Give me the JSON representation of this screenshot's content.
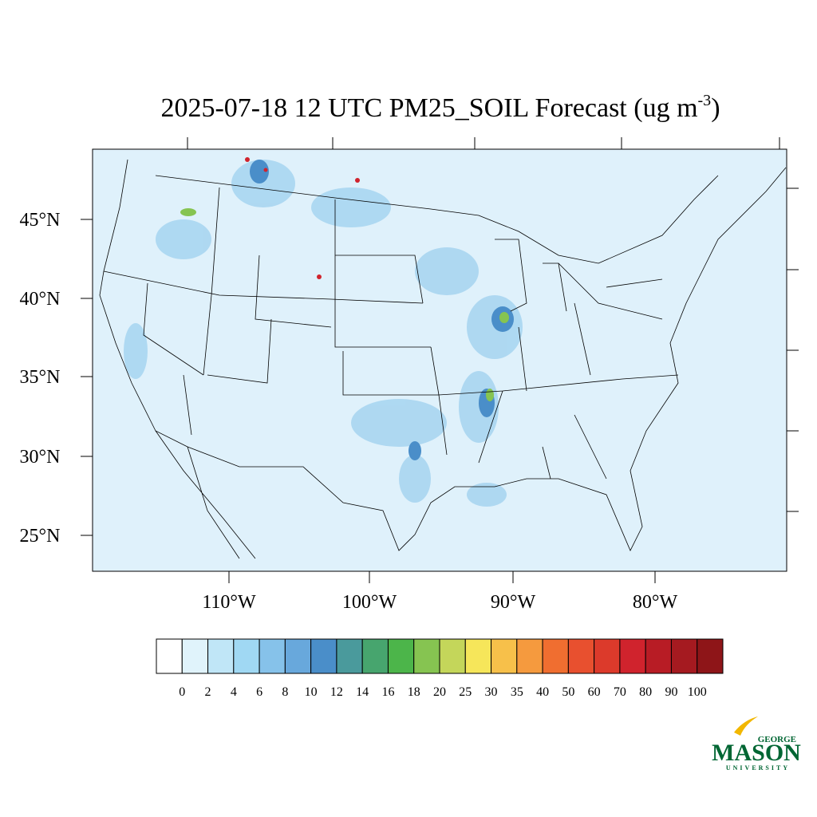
{
  "title": {
    "main": "2025-07-18 12 UTC PM25_SOIL Forecast (ug m",
    "exponent": "-3",
    "end": ")"
  },
  "lat_labels": [
    "45°N",
    "40°N",
    "35°N",
    "30°N",
    "25°N"
  ],
  "lon_labels": [
    "110°W",
    "100°W",
    "90°W",
    "80°W"
  ],
  "colorbar": {
    "levels": [
      0,
      2,
      4,
      6,
      8,
      10,
      12,
      14,
      16,
      18,
      20,
      25,
      30,
      35,
      40,
      50,
      60,
      70,
      80,
      90,
      100
    ],
    "colors": [
      "#ffffff",
      "#e0f3fb",
      "#c0e6f7",
      "#a0d8f3",
      "#86c2ea",
      "#68a8dc",
      "#4a8ec9",
      "#4a9a9c",
      "#47a56e",
      "#4cb54a",
      "#86c451",
      "#c4d65a",
      "#f6e65a",
      "#f7c04a",
      "#f59a3e",
      "#f06e30",
      "#e8502f",
      "#dc3a2b",
      "#d0232d",
      "#b81c25",
      "#a51a20",
      "#8e1518"
    ]
  },
  "logo": {
    "top": "GEORGE",
    "main": "MASON",
    "bottom": "UNIVERSITY"
  }
}
